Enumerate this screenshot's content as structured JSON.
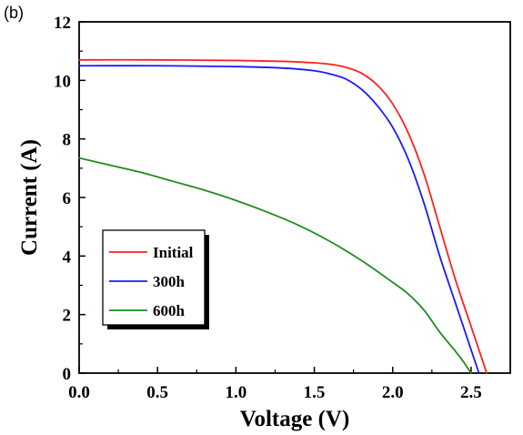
{
  "panel_label": "(b)",
  "chart_data": {
    "type": "line",
    "xlabel": "Voltage (V)",
    "ylabel": "Current (A)",
    "xlim": [
      0,
      2.75
    ],
    "ylim": [
      0,
      12
    ],
    "xticks": [
      "0.0",
      "0.5",
      "1.0",
      "1.5",
      "2.0",
      "2.5"
    ],
    "yticks": [
      "0",
      "2",
      "4",
      "6",
      "8",
      "10",
      "12"
    ],
    "grid": false,
    "legend_position": "lower-left",
    "series": [
      {
        "name": "Initial",
        "color": "#ff2020",
        "points": [
          [
            0.0,
            10.7
          ],
          [
            0.5,
            10.7
          ],
          [
            1.0,
            10.68
          ],
          [
            1.3,
            10.65
          ],
          [
            1.5,
            10.6
          ],
          [
            1.6,
            10.55
          ],
          [
            1.7,
            10.45
          ],
          [
            1.8,
            10.25
          ],
          [
            1.9,
            9.85
          ],
          [
            2.0,
            9.2
          ],
          [
            2.1,
            8.2
          ],
          [
            2.2,
            6.8
          ],
          [
            2.3,
            5.0
          ],
          [
            2.4,
            3.2
          ],
          [
            2.5,
            1.6
          ],
          [
            2.55,
            0.8
          ],
          [
            2.6,
            0.0
          ]
        ]
      },
      {
        "name": "300h",
        "color": "#1a1aff",
        "points": [
          [
            0.0,
            10.5
          ],
          [
            0.5,
            10.5
          ],
          [
            1.0,
            10.47
          ],
          [
            1.3,
            10.42
          ],
          [
            1.5,
            10.33
          ],
          [
            1.6,
            10.22
          ],
          [
            1.7,
            10.05
          ],
          [
            1.8,
            9.7
          ],
          [
            1.9,
            9.15
          ],
          [
            2.0,
            8.4
          ],
          [
            2.1,
            7.3
          ],
          [
            2.2,
            5.8
          ],
          [
            2.3,
            4.0
          ],
          [
            2.4,
            2.4
          ],
          [
            2.5,
            0.8
          ],
          [
            2.55,
            0.0
          ]
        ]
      },
      {
        "name": "600h",
        "color": "#1f8c1f",
        "points": [
          [
            0.0,
            7.35
          ],
          [
            0.2,
            7.1
          ],
          [
            0.4,
            6.85
          ],
          [
            0.6,
            6.55
          ],
          [
            0.8,
            6.25
          ],
          [
            1.0,
            5.9
          ],
          [
            1.2,
            5.5
          ],
          [
            1.4,
            5.05
          ],
          [
            1.6,
            4.5
          ],
          [
            1.8,
            3.85
          ],
          [
            2.0,
            3.1
          ],
          [
            2.1,
            2.7
          ],
          [
            2.2,
            2.15
          ],
          [
            2.3,
            1.4
          ],
          [
            2.4,
            0.75
          ],
          [
            2.45,
            0.4
          ],
          [
            2.5,
            0.0
          ]
        ]
      }
    ]
  }
}
